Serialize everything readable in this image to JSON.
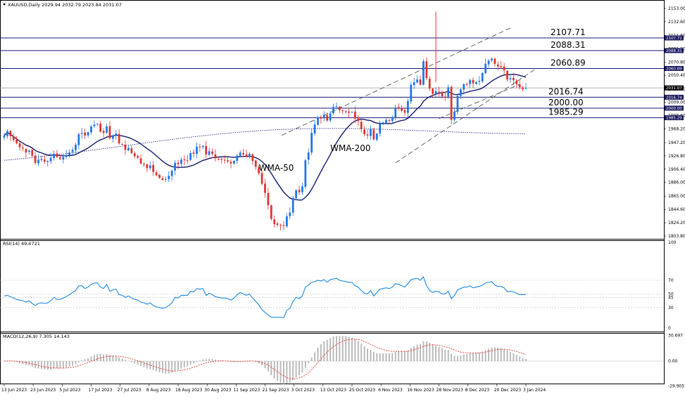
{
  "symbol_header": "XAUUSD,Daily  2029.94 2032.79 2023.84 2031.07",
  "rsi_header": "RSI(14) 49.4721",
  "macd_header": "MACD(12,26,9) 7.305 14.143",
  "annotations": {
    "wma50": "WMA-50",
    "wma200": "WMA-200"
  },
  "colors": {
    "bull": "#1e74e8",
    "bear": "#e2302f",
    "level": "#1a1a72",
    "wma50": "#141a6e",
    "wma200": "#2a2a8a",
    "rsi": "#1e88e5",
    "macd_hist": "#b8b8b8",
    "macd_signal": "#e53935",
    "channel": "#555555",
    "tag_bg": "#1a1a60"
  },
  "chart_data": [
    {
      "type": "candlestick",
      "title": "XAUUSD,Daily",
      "last_ohlc": {
        "open": 2029.94,
        "high": 2032.79,
        "low": 2023.84,
        "close": 2031.07
      },
      "y_ticks": [
        "2153.00",
        "2132.60",
        "2111.60",
        "2091.20",
        "2070.80",
        "2050.40",
        "2029.00",
        "2009.00",
        "1988.60",
        "1968.20",
        "1947.20",
        "1926.80",
        "1906.40",
        "1886.00",
        "1865.00",
        "1844.60",
        "1824.20",
        "1803.80"
      ],
      "ylim": [
        1803.8,
        2153.0
      ],
      "x_labels": [
        "13 Jun 2023",
        "23 Jun 2023",
        "5 Jul 2023",
        "17 Jul 2023",
        "27 Jul 2023",
        "8 Aug 2023",
        "18 Aug 2023",
        "30 Aug 2023",
        "11 Sep 2023",
        "21 Sep 2023",
        "3 Oct 2023",
        "13 Oct 2023",
        "25 Oct 2023",
        "6 Nov 2023",
        "16 Nov 2023",
        "28 Nov 2023",
        "8 Dec 2023",
        "20 Dec 2023",
        "3 Jan 2024"
      ],
      "series_close": [
        1958,
        1965,
        1957,
        1951,
        1946,
        1940,
        1938,
        1932,
        1935,
        1927,
        1916,
        1921,
        1922,
        1918,
        1919,
        1924,
        1930,
        1925,
        1922,
        1925,
        1928,
        1932,
        1936,
        1944,
        1960,
        1962,
        1958,
        1963,
        1972,
        1975,
        1976,
        1964,
        1962,
        1972,
        1954,
        1958,
        1961,
        1946,
        1944,
        1936,
        1939,
        1931,
        1926,
        1924,
        1915,
        1914,
        1908,
        1912,
        1902,
        1897,
        1893,
        1890,
        1891,
        1896,
        1904,
        1916,
        1914,
        1921,
        1920,
        1920,
        1931,
        1930,
        1941,
        1940,
        1942,
        1929,
        1934,
        1930,
        1923,
        1922,
        1921,
        1920,
        1918,
        1915,
        1919,
        1927,
        1932,
        1929,
        1926,
        1930,
        1919,
        1910,
        1900,
        1884,
        1870,
        1851,
        1830,
        1822,
        1821,
        1820,
        1819,
        1834,
        1840,
        1862,
        1874,
        1871,
        1880,
        1920,
        1932,
        1962,
        1975,
        1986,
        1984,
        1990,
        1981,
        1992,
        2002,
        2003,
        1997,
        1996,
        1995,
        1993,
        1994,
        1984,
        1980,
        1968,
        1960,
        1958,
        1968,
        1952,
        1961,
        1976,
        1978,
        1982,
        1981,
        1985,
        2001,
        2000,
        1996,
        1993,
        2011,
        2036,
        2040,
        2044,
        2036,
        2072,
        2046,
        2030,
        2022,
        2026,
        2024,
        2018,
        2017,
        2032,
        1982,
        1994,
        2019,
        2029,
        2037,
        2036,
        2043,
        2038,
        2040,
        2042,
        2054,
        2068,
        2073,
        2076,
        2068,
        2064,
        2063,
        2058,
        2044,
        2046,
        2043,
        2037,
        2032,
        2029,
        2031
      ],
      "horizontal_levels": [
        2107.71,
        2088.31,
        2060.89,
        2016.74,
        2000.0,
        1985.29
      ],
      "price_tag_last": "2031.07",
      "annotations": [
        "2107.71",
        "2088.31",
        "2060.89",
        "2016.74",
        "2000.00",
        "1985.29",
        "WMA-50",
        "WMA-200"
      ]
    },
    {
      "type": "line",
      "title": "RSI(14)",
      "value": 49.4721,
      "y_ticks": [
        "100",
        "70",
        "50",
        "45",
        "30",
        "0"
      ],
      "ylim": [
        0,
        100
      ],
      "series": [
        {
          "values": [
            47,
            48,
            46,
            44,
            42,
            41,
            40,
            38,
            40,
            36,
            33,
            36,
            37,
            36,
            37,
            40,
            45,
            42,
            42,
            44,
            46,
            49,
            52,
            55,
            62,
            62,
            58,
            60,
            64,
            66,
            66,
            60,
            58,
            64,
            54,
            56,
            57,
            49,
            48,
            45,
            47,
            44,
            42,
            41,
            38,
            37,
            35,
            37,
            33,
            31,
            30,
            29,
            30,
            33,
            37,
            45,
            44,
            48,
            48,
            48,
            54,
            53,
            58,
            57,
            58,
            48,
            51,
            49,
            46,
            45,
            44,
            44,
            43,
            41,
            44,
            49,
            52,
            50,
            48,
            50,
            44,
            39,
            34,
            27,
            23,
            19,
            16,
            16,
            16,
            16,
            15,
            26,
            29,
            39,
            45,
            43,
            47,
            60,
            63,
            67,
            68,
            70,
            69,
            71,
            67,
            71,
            72,
            73,
            70,
            69,
            68,
            67,
            67,
            62,
            60,
            55,
            51,
            50,
            55,
            47,
            52,
            57,
            58,
            59,
            58,
            60,
            65,
            64,
            62,
            60,
            65,
            71,
            72,
            73,
            70,
            75,
            62,
            55,
            52,
            54,
            53,
            50,
            50,
            54,
            43,
            48,
            56,
            58,
            60,
            60,
            62,
            59,
            60,
            61,
            63,
            66,
            67,
            68,
            63,
            61,
            61,
            59,
            53,
            54,
            53,
            51,
            49,
            49,
            49
          ]
        }
      ]
    },
    {
      "type": "bar",
      "title": "MACD(12,26,9)",
      "macd_value": 7.305,
      "signal_value": 14.143,
      "y_ticks": [
        "30.697",
        "0.00",
        "-29.905"
      ],
      "ylim": [
        -29.905,
        30.697
      ]
    }
  ]
}
